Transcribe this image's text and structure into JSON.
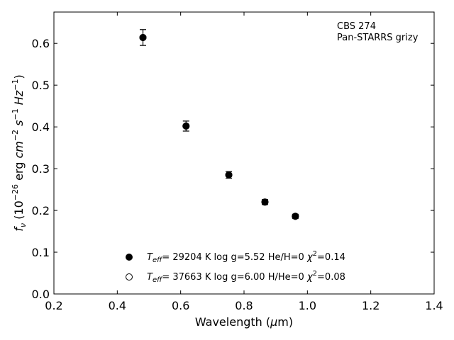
{
  "chart_data": {
    "type": "scatter",
    "xlabel": "Wavelength (μm)",
    "ylabel": "f_ν (10^-26 erg cm^-2 s^-1 Hz^-1)",
    "xlim": [
      0.2,
      1.4
    ],
    "ylim": [
      0.0,
      0.675
    ],
    "xticks": [
      0.2,
      0.4,
      0.6,
      0.8,
      1.0,
      1.2,
      1.4
    ],
    "xtick_labels": [
      "0.2",
      "0.4",
      "0.6",
      "0.8",
      "1.0",
      "1.2",
      "1.4"
    ],
    "yticks": [
      0.0,
      0.1,
      0.2,
      0.3,
      0.4,
      0.5,
      0.6
    ],
    "ytick_labels": [
      "0.0",
      "0.1",
      "0.2",
      "0.3",
      "0.4",
      "0.5",
      "0.6"
    ],
    "grid": false,
    "annotation": [
      "CBS 274",
      "Pan-STARRS grizy"
    ],
    "points": [
      {
        "x": 0.481,
        "y": 0.614,
        "err": 0.019
      },
      {
        "x": 0.617,
        "y": 0.402,
        "err": 0.012
      },
      {
        "x": 0.752,
        "y": 0.285,
        "err": 0.008
      },
      {
        "x": 0.866,
        "y": 0.22,
        "err": 0.006
      },
      {
        "x": 0.962,
        "y": 0.186,
        "err": 0.005
      }
    ],
    "legend_placement": "bottom-center",
    "legend": [
      {
        "marker": "filled-circle",
        "teff": "29204",
        "logg": "5.52",
        "ratio_label": "He/H=0",
        "chi2": "0.14"
      },
      {
        "marker": "open-circle",
        "teff": "37663",
        "logg": "6.00",
        "ratio_label": "H/He=0",
        "chi2": "0.08"
      }
    ]
  }
}
